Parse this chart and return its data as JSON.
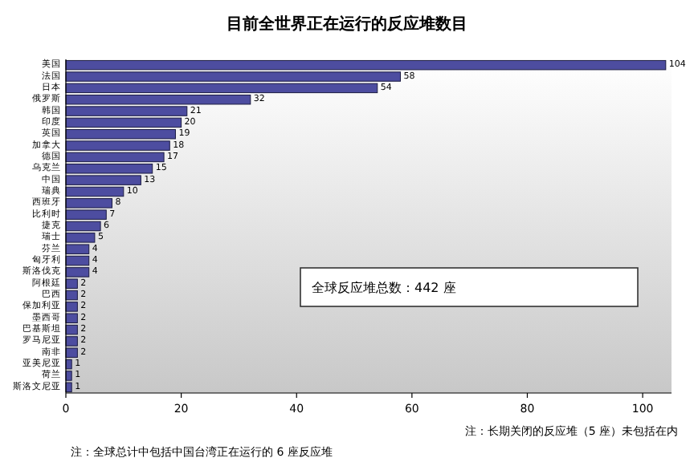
{
  "chart_data": {
    "type": "bar",
    "orientation": "horizontal",
    "title": "目前全世界正在运行的反应堆数目",
    "categories": [
      "美国",
      "法国",
      "日本",
      "俄罗斯",
      "韩国",
      "印度",
      "英国",
      "加拿大",
      "德国",
      "乌克兰",
      "中国",
      "瑞典",
      "西班牙",
      "比利时",
      "捷克",
      "瑞士",
      "芬兰",
      "匈牙利",
      "斯洛伐克",
      "阿根廷",
      "巴西",
      "保加利亚",
      "墨西哥",
      "巴基斯坦",
      "罗马尼亚",
      "南非",
      "亚美尼亚",
      "荷兰",
      "斯洛文尼亚"
    ],
    "values": [
      104,
      58,
      54,
      32,
      21,
      20,
      19,
      18,
      17,
      15,
      13,
      10,
      8,
      7,
      6,
      5,
      4,
      4,
      4,
      2,
      2,
      2,
      2,
      2,
      2,
      2,
      1,
      1,
      1
    ],
    "color": "#4d4da0",
    "data_labels": true,
    "xlim": [
      0,
      105
    ],
    "xticks": [
      0,
      20,
      40,
      60,
      80,
      100
    ],
    "grid": false,
    "annotations": [
      "全球反应堆总数：442 座",
      "注：长期关闭的反应堆（5 座）未包括在内",
      "注：全球总计中包括中国台湾正在运行的 6 座反应堆"
    ]
  }
}
